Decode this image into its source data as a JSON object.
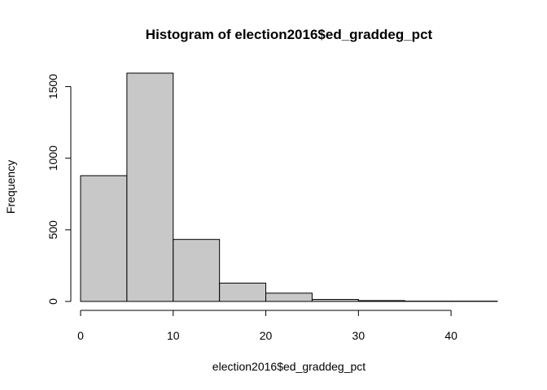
{
  "chart_data": {
    "type": "bar",
    "title": "Histogram of election2016$ed_graddeg_pct",
    "xlabel": "election2016$ed_graddeg_pct",
    "ylabel": "Frequency",
    "bins": [
      {
        "x0": 0,
        "x1": 5,
        "count": 878
      },
      {
        "x0": 5,
        "x1": 10,
        "count": 1594
      },
      {
        "x0": 10,
        "x1": 15,
        "count": 433
      },
      {
        "x0": 15,
        "x1": 20,
        "count": 128
      },
      {
        "x0": 20,
        "x1": 25,
        "count": 58
      },
      {
        "x0": 25,
        "x1": 30,
        "count": 14
      },
      {
        "x0": 30,
        "x1": 35,
        "count": 6
      },
      {
        "x0": 35,
        "x1": 40,
        "count": 2
      },
      {
        "x0": 40,
        "x1": 45,
        "count": 2
      }
    ],
    "xticks": [
      0,
      10,
      20,
      30,
      40
    ],
    "yticks": [
      0,
      500,
      1000,
      1500
    ],
    "xlim": [
      0,
      45
    ],
    "ylim": [
      0,
      1594
    ],
    "grid": false,
    "colors": {
      "bar_fill": "#c8c8c8",
      "bar_stroke": "#000000"
    }
  }
}
